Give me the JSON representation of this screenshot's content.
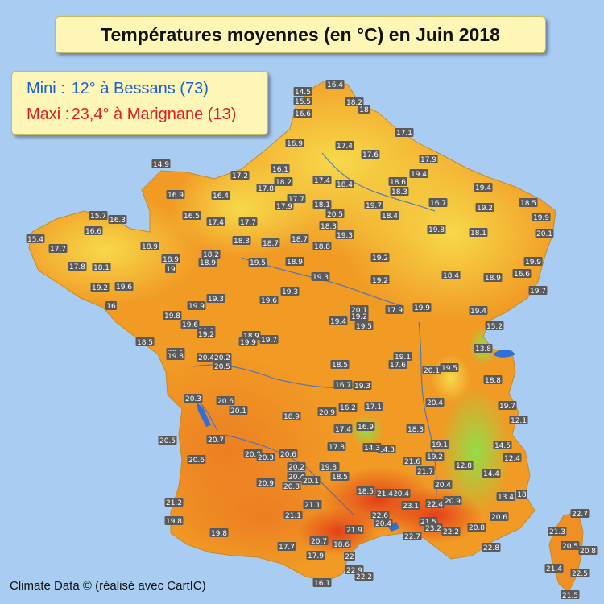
{
  "title": "Températures moyennes (en °C) en Juin 2018",
  "legend": {
    "mini_label": "Mini :",
    "mini_value": "12° à Bessans (73)",
    "mini_color": "#1a5fd6",
    "maxi_label": "Maxi :",
    "maxi_value": "23,4° à Marignane (13)",
    "maxi_color": "#e01b1b"
  },
  "credit": "Climate Data © (réalisé avec CartIC)",
  "colors": {
    "sea": "#a9cdf2",
    "land_base": "#f5a623",
    "cool": "#f7d84a",
    "hot": "#e8451e",
    "alpine": "#7fd34a",
    "water": "#2f6fd8",
    "label_bg": "#5a5a5a",
    "label_text": "#ffffff"
  },
  "stations": [
    {
      "v": "16.4"
    },
    {
      "v": "14.5"
    },
    {
      "v": "15.5"
    },
    {
      "v": "18.2"
    },
    {
      "v": "18"
    },
    {
      "v": "16.6"
    },
    {
      "v": "17.1"
    },
    {
      "v": "16.9"
    },
    {
      "v": "17.4"
    },
    {
      "v": "17.6"
    },
    {
      "v": "17.9"
    },
    {
      "v": "19.4"
    },
    {
      "v": "14.9"
    },
    {
      "v": "16.1"
    },
    {
      "v": "17.2"
    },
    {
      "v": "18.2"
    },
    {
      "v": "17.4"
    },
    {
      "v": "18.4"
    },
    {
      "v": "18.6"
    },
    {
      "v": "18.3"
    },
    {
      "v": "19.4"
    },
    {
      "v": "16.9"
    },
    {
      "v": "16.4"
    },
    {
      "v": "17.8"
    },
    {
      "v": "17.7"
    },
    {
      "v": "17.9"
    },
    {
      "v": "18.1"
    },
    {
      "v": "20.5"
    },
    {
      "v": "19.7"
    },
    {
      "v": "18.4"
    },
    {
      "v": "16.7"
    },
    {
      "v": "19.2"
    },
    {
      "v": "18.5"
    },
    {
      "v": "19.9"
    },
    {
      "v": "15.7"
    },
    {
      "v": "16.3"
    },
    {
      "v": "16.5"
    },
    {
      "v": "17.4"
    },
    {
      "v": "17.7"
    },
    {
      "v": "18.3"
    },
    {
      "v": "19.3"
    },
    {
      "v": "19.8"
    },
    {
      "v": "18.7"
    },
    {
      "v": "18.8"
    },
    {
      "v": "20.1"
    },
    {
      "v": "15.4"
    },
    {
      "v": "16.6"
    },
    {
      "v": "18.3"
    },
    {
      "v": "18.7"
    },
    {
      "v": "18.1"
    },
    {
      "v": "17.7"
    },
    {
      "v": "18.9"
    },
    {
      "v": "18.2"
    },
    {
      "v": "19.5"
    },
    {
      "v": "18.9"
    },
    {
      "v": "19.2"
    },
    {
      "v": "19.9"
    },
    {
      "v": "17.8"
    },
    {
      "v": "18.1"
    },
    {
      "v": "18.9"
    },
    {
      "v": "19"
    },
    {
      "v": "18.9"
    },
    {
      "v": "19.3"
    },
    {
      "v": "19.2"
    },
    {
      "v": "18.4"
    },
    {
      "v": "18.9"
    },
    {
      "v": "16.6"
    },
    {
      "v": "19.7"
    },
    {
      "v": "19.2"
    },
    {
      "v": "19.6"
    },
    {
      "v": "19.3"
    },
    {
      "v": "19.6"
    },
    {
      "v": "19.3"
    },
    {
      "v": "16"
    },
    {
      "v": "19.9"
    },
    {
      "v": "17.9"
    },
    {
      "v": "19.9"
    },
    {
      "v": "19.4"
    },
    {
      "v": "19.8"
    },
    {
      "v": "19.6"
    },
    {
      "v": "18.9"
    },
    {
      "v": "20.1"
    },
    {
      "v": "19.2"
    },
    {
      "v": "19.5"
    },
    {
      "v": "15.2"
    },
    {
      "v": "19.4"
    },
    {
      "v": "19.2"
    },
    {
      "v": "18.9"
    },
    {
      "v": "19.7"
    },
    {
      "v": "19.9"
    },
    {
      "v": "18.5"
    },
    {
      "v": "20.1"
    },
    {
      "v": "20.4"
    },
    {
      "v": "20.2"
    },
    {
      "v": "19.1"
    },
    {
      "v": "13.8"
    },
    {
      "v": "19.8"
    },
    {
      "v": "17.6"
    },
    {
      "v": "20.5"
    },
    {
      "v": "18.5"
    },
    {
      "v": "20.1"
    },
    {
      "v": "19.5"
    },
    {
      "v": "18.8"
    },
    {
      "v": "19.3"
    },
    {
      "v": "16.7"
    },
    {
      "v": "20.3"
    },
    {
      "v": "20.6"
    },
    {
      "v": "20.1"
    },
    {
      "v": "18.9"
    },
    {
      "v": "20.9"
    },
    {
      "v": "16.2"
    },
    {
      "v": "17.1"
    },
    {
      "v": "20.4"
    },
    {
      "v": "19.7"
    },
    {
      "v": "12.1"
    },
    {
      "v": "20.5"
    },
    {
      "v": "20.7"
    },
    {
      "v": "20.6"
    },
    {
      "v": "20.8"
    },
    {
      "v": "17.4"
    },
    {
      "v": "16.9"
    },
    {
      "v": "18.3"
    },
    {
      "v": "14.3"
    },
    {
      "v": "19.1"
    },
    {
      "v": "19.8"
    },
    {
      "v": "20.3"
    },
    {
      "v": "17.8"
    },
    {
      "v": "14.3"
    },
    {
      "v": "14.5"
    },
    {
      "v": "20.6"
    },
    {
      "v": "20.2"
    },
    {
      "v": "19.8"
    },
    {
      "v": "21.6"
    },
    {
      "v": "12.8"
    },
    {
      "v": "12.4"
    },
    {
      "v": "20.4"
    },
    {
      "v": "20.1"
    },
    {
      "v": "18.5"
    },
    {
      "v": "14.4"
    },
    {
      "v": "20.9"
    },
    {
      "v": "20.8"
    },
    {
      "v": "18.5"
    },
    {
      "v": "21.7"
    },
    {
      "v": "20.4"
    },
    {
      "v": "19.2"
    },
    {
      "v": "21.2"
    },
    {
      "v": "20.4"
    },
    {
      "v": "21.1"
    },
    {
      "v": "21.4"
    },
    {
      "v": "23.1"
    },
    {
      "v": "22.4"
    },
    {
      "v": "20.9"
    },
    {
      "v": "13.4"
    },
    {
      "v": "18"
    },
    {
      "v": "20.6"
    },
    {
      "v": "22.7"
    },
    {
      "v": "19.8"
    },
    {
      "v": "21.1"
    },
    {
      "v": "22.6"
    },
    {
      "v": "20.4"
    },
    {
      "v": "21.5"
    },
    {
      "v": "23.2"
    },
    {
      "v": "22.2"
    },
    {
      "v": "20.8"
    },
    {
      "v": "19.8"
    },
    {
      "v": "21.9"
    },
    {
      "v": "22.7"
    },
    {
      "v": "21.3"
    },
    {
      "v": "20.7"
    },
    {
      "v": "17.7"
    },
    {
      "v": "18.6"
    },
    {
      "v": "22.8"
    },
    {
      "v": "20.5"
    },
    {
      "v": "20.8"
    },
    {
      "v": "17.9"
    },
    {
      "v": "22"
    },
    {
      "v": "22.9"
    },
    {
      "v": "21.4"
    },
    {
      "v": "22.5"
    },
    {
      "v": "16.1"
    },
    {
      "v": "22.2"
    },
    {
      "v": "21.5"
    }
  ]
}
